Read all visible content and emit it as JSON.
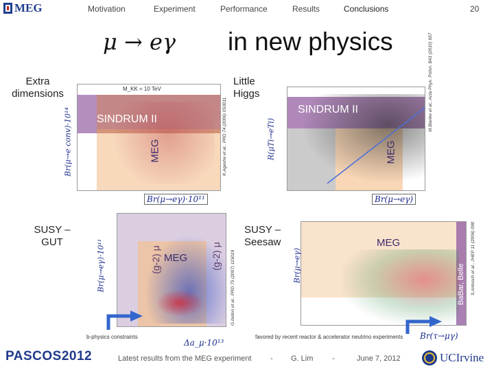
{
  "header": {
    "logo": "MEG",
    "nav": [
      "Motivation",
      "Experiment",
      "Performance",
      "Results",
      "Conclusions"
    ],
    "page_number": "20"
  },
  "title": {
    "formula": "μ → eγ",
    "text": "in new physics"
  },
  "panels": {
    "extra_dimensions": {
      "label": "Extra dimensions",
      "top_note": "M_KK = 10 TeV",
      "sindrum": "SINDRUM II",
      "meg": "MEG",
      "x_axis": "Br(μ→eγ)·10¹¹",
      "y_axis": "Br(μ→e conv)·10¹⁴",
      "citation": "K.Agashe et al., PRD 74 (2006) 053011"
    },
    "little_higgs": {
      "label": "Little Higgs",
      "sindrum": "SINDRUM II",
      "meg": "MEG",
      "x_axis": "Br(μ→eγ)",
      "y_axis": "R(μTi→eTi)",
      "citation": "M.Blanke et al., Acta Phys. Polon. B41 (2010) 657"
    },
    "susy_gut": {
      "label": "SUSY – GUT",
      "meg": "MEG",
      "g2_left": "(g-2) μ",
      "g2_right": "(g-2) μ",
      "x_axis": "Δa_μ·10¹³",
      "y_axis": "Br(μ→eγ)·10¹¹",
      "note": "b-physics constraints",
      "citation": "G.Isidori et al., PRD 75 (2007) 115019"
    },
    "susy_seesaw": {
      "label": "SUSY – Seesaw",
      "meg": "MEG",
      "babar": "BaBar, Belle",
      "x_axis": "Br(τ→μγ)",
      "y_axis": "Br(μ→eγ)",
      "note": "favored by recent reactor & accelerator neutrino experiments",
      "citation": "S.Antusch et al., JHEP 11 (2006) 090"
    }
  },
  "footer": {
    "conference": "PASCOS2012",
    "talk": "Latest results from the MEG experiment",
    "sep1": "-",
    "author": "G. Lim",
    "sep2": "-",
    "date": "June 7, 2012",
    "institution": "UCIrvine"
  },
  "colors": {
    "sindrum_band": "#9b6aa8",
    "meg_band": "#f4c08f",
    "nav_highlight": "#dddddd"
  }
}
